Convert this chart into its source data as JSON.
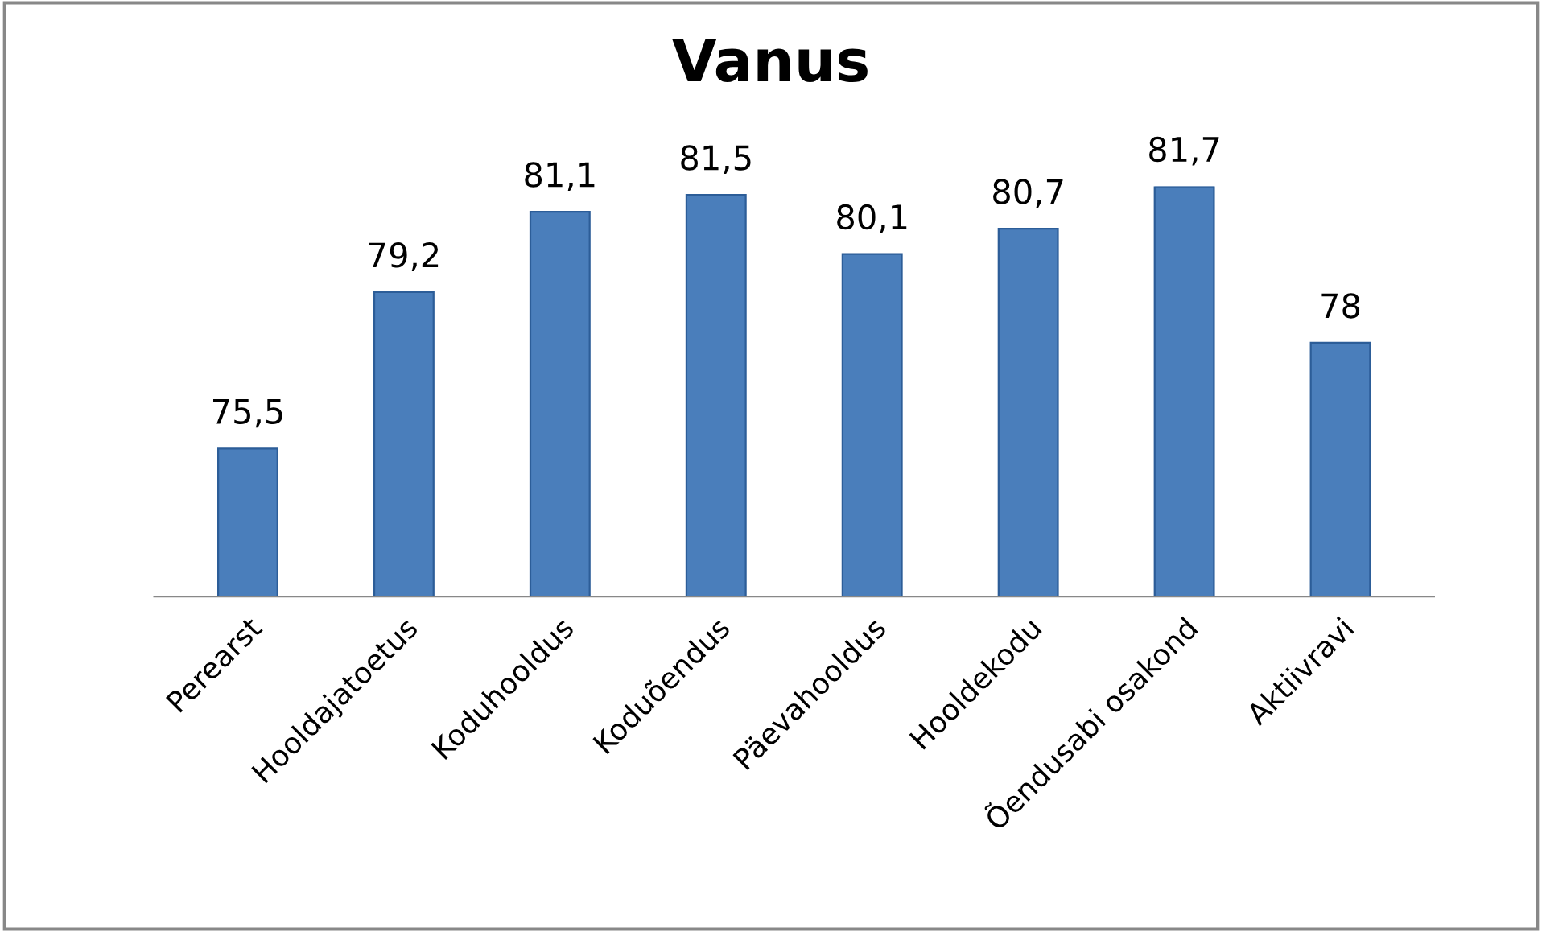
{
  "chart_data": {
    "type": "bar",
    "title": "Vanus",
    "categories": [
      "Perearst",
      "Hooldajatoetus",
      "Koduhooldus",
      "Koduõendus",
      "Päevahooldus",
      "Hooldekodu",
      "Õendusabi osakond",
      "Aktiivravi"
    ],
    "values": [
      75.5,
      79.2,
      81.1,
      81.5,
      80.1,
      80.7,
      81.7,
      78
    ],
    "value_labels": [
      "75,5",
      "79,2",
      "81,1",
      "81,5",
      "80,1",
      "80,7",
      "81,7",
      "78"
    ],
    "color": "#4a7ebb",
    "ylim": [
      72,
      81.7
    ],
    "tick_labels": "x",
    "grid": false,
    "legend": false
  }
}
